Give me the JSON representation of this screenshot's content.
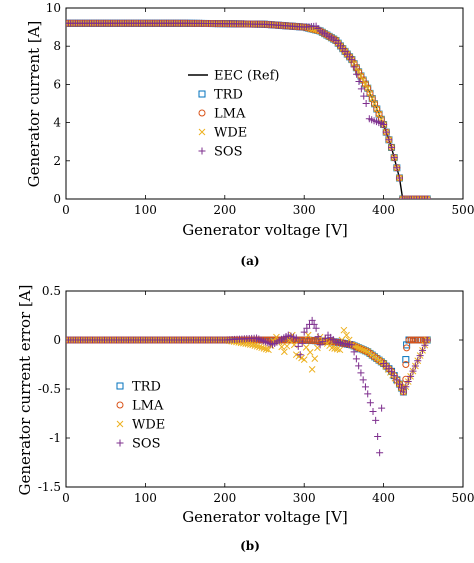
{
  "colors": {
    "ref": "#000000",
    "trd": "#0072BD",
    "lma": "#D95319",
    "wde": "#EDB120",
    "sos": "#7E2F8E"
  },
  "chart_data": [
    {
      "type": "scatter",
      "caption": "(a)",
      "xlabel": "Generator voltage [V]",
      "ylabel": "Generator current [A]",
      "xlim": [
        0,
        500
      ],
      "ylim": [
        0,
        10
      ],
      "xticks": [
        0,
        100,
        200,
        300,
        400,
        500
      ],
      "yticks": [
        0,
        2,
        4,
        6,
        8,
        10
      ],
      "grid": false,
      "legend_position": "center",
      "legend": [
        "EEC (Ref)",
        "TRD",
        "LMA",
        "WDE",
        "SOS"
      ],
      "series": [
        {
          "name": "EEC (Ref)",
          "style": "line",
          "points": [
            [
              0,
              9.2
            ],
            [
              100,
              9.2
            ],
            [
              200,
              9.18
            ],
            [
              250,
              9.15
            ],
            [
              280,
              9.1
            ],
            [
              300,
              9.0
            ],
            [
              320,
              8.8
            ],
            [
              340,
              8.3
            ],
            [
              360,
              7.3
            ],
            [
              380,
              5.8
            ],
            [
              400,
              3.9
            ],
            [
              410,
              2.7
            ],
            [
              420,
              1.1
            ],
            [
              424,
              0.0
            ],
            [
              455,
              0.0
            ]
          ]
        },
        {
          "name": "TRD",
          "marker": "square",
          "points": [
            [
              0,
              9.2
            ],
            [
              50,
              9.2
            ],
            [
              100,
              9.2
            ],
            [
              150,
              9.2
            ],
            [
              200,
              9.18
            ],
            [
              250,
              9.15
            ],
            [
              300,
              9.0
            ],
            [
              320,
              8.8
            ],
            [
              340,
              8.3
            ],
            [
              360,
              7.3
            ],
            [
              380,
              5.8
            ],
            [
              400,
              3.9
            ],
            [
              410,
              2.7
            ],
            [
              420,
              1.1
            ],
            [
              424,
              0.0
            ],
            [
              435,
              0.0
            ],
            [
              445,
              0.0
            ],
            [
              455,
              0.0
            ]
          ]
        },
        {
          "name": "LMA",
          "marker": "circle",
          "points": [
            [
              0,
              9.2
            ],
            [
              50,
              9.2
            ],
            [
              100,
              9.2
            ],
            [
              150,
              9.2
            ],
            [
              200,
              9.18
            ],
            [
              250,
              9.15
            ],
            [
              300,
              9.0
            ],
            [
              320,
              8.8
            ],
            [
              340,
              8.3
            ],
            [
              360,
              7.3
            ],
            [
              380,
              5.8
            ],
            [
              400,
              3.9
            ],
            [
              410,
              2.7
            ],
            [
              420,
              1.1
            ],
            [
              424,
              0.0
            ],
            [
              435,
              0.0
            ],
            [
              445,
              0.0
            ],
            [
              455,
              0.0
            ]
          ]
        },
        {
          "name": "WDE",
          "marker": "x",
          "points": [
            [
              0,
              9.2
            ],
            [
              50,
              9.2
            ],
            [
              100,
              9.2
            ],
            [
              150,
              9.2
            ],
            [
              200,
              9.18
            ],
            [
              250,
              9.15
            ],
            [
              300,
              9.0
            ],
            [
              320,
              8.8
            ],
            [
              340,
              8.3
            ],
            [
              360,
              7.3
            ],
            [
              380,
              5.8
            ],
            [
              400,
              3.9
            ],
            [
              410,
              2.7
            ],
            [
              420,
              1.1
            ],
            [
              424,
              0.0
            ],
            [
              435,
              0.0
            ],
            [
              445,
              0.0
            ],
            [
              455,
              0.0
            ]
          ]
        },
        {
          "name": "SOS",
          "marker": "plus",
          "points": [
            [
              0,
              9.2
            ],
            [
              50,
              9.2
            ],
            [
              100,
              9.2
            ],
            [
              150,
              9.2
            ],
            [
              200,
              9.18
            ],
            [
              250,
              9.15
            ],
            [
              300,
              9.0
            ],
            [
              315,
              9.05
            ],
            [
              320,
              8.8
            ],
            [
              340,
              8.3
            ],
            [
              360,
              7.3
            ],
            [
              378,
              5.0
            ],
            [
              382,
              4.2
            ],
            [
              400,
              3.9
            ],
            [
              410,
              2.7
            ],
            [
              420,
              1.1
            ],
            [
              424,
              0.0
            ],
            [
              435,
              0.0
            ],
            [
              445,
              0.0
            ],
            [
              455,
              0.0
            ]
          ]
        }
      ]
    },
    {
      "type": "scatter",
      "caption": "(b)",
      "xlabel": "Generator voltage [V]",
      "ylabel": "Generator current error [A]",
      "xlim": [
        0,
        500
      ],
      "ylim": [
        -1.5,
        0.5
      ],
      "xticks": [
        0,
        100,
        200,
        300,
        400,
        500
      ],
      "yticks": [
        -1.5,
        -1,
        -0.5,
        0,
        0.5
      ],
      "grid": false,
      "legend_position": "bottom-left",
      "legend": [
        "TRD",
        "LMA",
        "WDE",
        "SOS"
      ],
      "series": [
        {
          "name": "TRD",
          "marker": "square",
          "points": [
            [
              0,
              0
            ],
            [
              50,
              0
            ],
            [
              100,
              0
            ],
            [
              150,
              0
            ],
            [
              200,
              0
            ],
            [
              250,
              0
            ],
            [
              300,
              0
            ],
            [
              320,
              -0.01
            ],
            [
              340,
              -0.02
            ],
            [
              360,
              -0.05
            ],
            [
              380,
              -0.12
            ],
            [
              400,
              -0.24
            ],
            [
              410,
              -0.32
            ],
            [
              420,
              -0.45
            ],
            [
              425,
              -0.53
            ],
            [
              428,
              -0.2
            ],
            [
              429,
              -0.05
            ],
            [
              432,
              0
            ],
            [
              440,
              0
            ],
            [
              450,
              0
            ],
            [
              455,
              0
            ]
          ]
        },
        {
          "name": "LMA",
          "marker": "circle",
          "points": [
            [
              0,
              0
            ],
            [
              50,
              0
            ],
            [
              100,
              0
            ],
            [
              150,
              0
            ],
            [
              200,
              0
            ],
            [
              250,
              0
            ],
            [
              300,
              0
            ],
            [
              320,
              -0.01
            ],
            [
              340,
              -0.02
            ],
            [
              360,
              -0.05
            ],
            [
              380,
              -0.12
            ],
            [
              400,
              -0.24
            ],
            [
              410,
              -0.32
            ],
            [
              420,
              -0.45
            ],
            [
              425,
              -0.53
            ],
            [
              428,
              -0.4
            ],
            [
              428,
              -0.25
            ],
            [
              429,
              -0.08
            ],
            [
              432,
              0
            ],
            [
              440,
              0
            ],
            [
              450,
              0
            ],
            [
              455,
              0
            ]
          ]
        },
        {
          "name": "WDE",
          "marker": "x",
          "points": [
            [
              0,
              0
            ],
            [
              100,
              0
            ],
            [
              200,
              0
            ],
            [
              235,
              -0.05
            ],
            [
              255,
              -0.1
            ],
            [
              265,
              0.03
            ],
            [
              275,
              -0.12
            ],
            [
              285,
              0.05
            ],
            [
              290,
              -0.15
            ],
            [
              300,
              -0.2
            ],
            [
              305,
              0.05
            ],
            [
              310,
              -0.3
            ],
            [
              320,
              0.03
            ],
            [
              335,
              -0.08
            ],
            [
              345,
              -0.1
            ],
            [
              350,
              0.1
            ],
            [
              360,
              -0.05
            ],
            [
              380,
              -0.12
            ],
            [
              400,
              -0.24
            ],
            [
              420,
              -0.45
            ],
            [
              425,
              -0.53
            ],
            [
              455,
              0
            ]
          ]
        },
        {
          "name": "SOS",
          "marker": "plus",
          "points": [
            [
              0,
              0
            ],
            [
              100,
              0
            ],
            [
              200,
              0
            ],
            [
              240,
              0.02
            ],
            [
              260,
              -0.05
            ],
            [
              280,
              0.05
            ],
            [
              290,
              0.02
            ],
            [
              295,
              -0.15
            ],
            [
              300,
              0.08
            ],
            [
              310,
              0.2
            ],
            [
              315,
              0.12
            ],
            [
              320,
              -0.05
            ],
            [
              330,
              0.05
            ],
            [
              340,
              -0.02
            ],
            [
              360,
              -0.05
            ],
            [
              380,
              -0.55
            ],
            [
              390,
              -0.82
            ],
            [
              395,
              -1.15
            ],
            [
              400,
              -0.24
            ],
            [
              410,
              -0.32
            ],
            [
              420,
              -0.45
            ],
            [
              425,
              -0.53
            ],
            [
              455,
              0
            ]
          ]
        }
      ]
    }
  ]
}
